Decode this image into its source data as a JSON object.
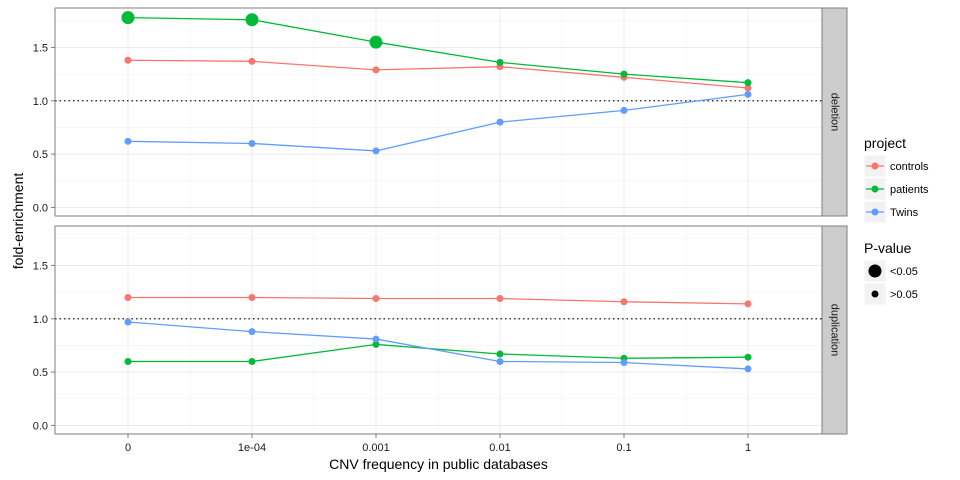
{
  "chart_data": {
    "type": "line",
    "xlabel": "CNV frequency in public databases",
    "ylabel": "fold-enrichment",
    "categories": [
      "0",
      "1e-04",
      "0.001",
      "0.01",
      "0.1",
      "1"
    ],
    "yticks": [
      "0.0",
      "0.5",
      "1.0",
      "1.5"
    ],
    "ylim": [
      -0.08,
      1.87
    ],
    "reference_line": 1.0,
    "grid": true,
    "legend_position": "right",
    "colors": {
      "controls": "#F8766D",
      "patients": "#00BA38",
      "Twins": "#619CFF"
    },
    "legend_project": {
      "title": "project",
      "entries": [
        "controls",
        "patients",
        "Twins"
      ]
    },
    "legend_pvalue": {
      "title": "P-value",
      "entries": [
        "<0.05",
        ">0.05"
      ]
    },
    "facets": [
      {
        "label": "deletion",
        "series": [
          {
            "name": "controls",
            "values": [
              1.38,
              1.37,
              1.29,
              1.32,
              1.22,
              1.12
            ],
            "significant": [
              false,
              false,
              false,
              false,
              false,
              false
            ]
          },
          {
            "name": "patients",
            "values": [
              1.78,
              1.76,
              1.55,
              1.36,
              1.25,
              1.17
            ],
            "significant": [
              true,
              true,
              true,
              false,
              false,
              false
            ]
          },
          {
            "name": "Twins",
            "values": [
              0.62,
              0.6,
              0.53,
              0.8,
              0.91,
              1.06
            ],
            "significant": [
              false,
              false,
              false,
              false,
              false,
              false
            ]
          }
        ]
      },
      {
        "label": "duplication",
        "series": [
          {
            "name": "controls",
            "values": [
              1.2,
              1.2,
              1.19,
              1.19,
              1.16,
              1.14
            ],
            "significant": [
              false,
              false,
              false,
              false,
              false,
              false
            ]
          },
          {
            "name": "patients",
            "values": [
              0.6,
              0.6,
              0.76,
              0.67,
              0.63,
              0.64
            ],
            "significant": [
              false,
              false,
              false,
              false,
              false,
              false
            ]
          },
          {
            "name": "Twins",
            "values": [
              0.97,
              0.88,
              0.81,
              0.6,
              0.59,
              0.53
            ],
            "significant": [
              false,
              false,
              false,
              false,
              false,
              false
            ]
          }
        ]
      }
    ]
  }
}
